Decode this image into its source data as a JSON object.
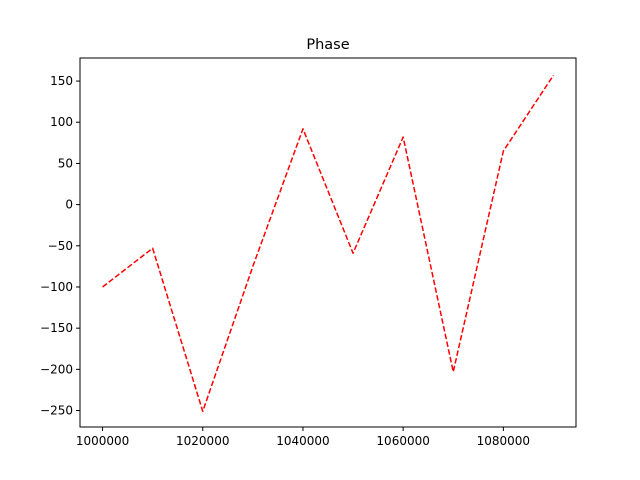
{
  "chart_data": {
    "type": "line",
    "title": "Phase",
    "xlabel": "",
    "ylabel": "",
    "xlim": [
      995500,
      1094500
    ],
    "ylim": [
      -270,
      178
    ],
    "grid": false,
    "legend": "none",
    "x_ticks": [
      1000000,
      1020000,
      1040000,
      1060000,
      1080000
    ],
    "y_ticks": [
      -250,
      -200,
      -150,
      -100,
      -50,
      0,
      50,
      100,
      150
    ],
    "series": [
      {
        "color": "#ff0000",
        "line_style": "dashed",
        "x": [
          1000000,
          1010000,
          1020000,
          1030000,
          1040000,
          1050000,
          1060000,
          1070000,
          1080000,
          1090000
        ],
        "y": [
          -100,
          -53,
          -251,
          -75,
          92,
          -59,
          82,
          -203,
          65,
          157
        ]
      }
    ]
  }
}
